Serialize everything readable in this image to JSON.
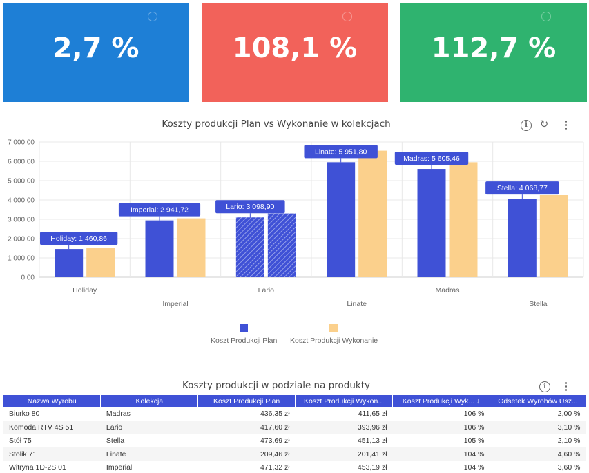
{
  "kpis": [
    {
      "value": "2,7 %",
      "color": "#1e7fd6"
    },
    {
      "value": "108,1 %",
      "color": "#f2625a"
    },
    {
      "value": "112,7 %",
      "color": "#2fb36f"
    }
  ],
  "chart_card": {
    "title": "Koszty produkcji Plan vs Wykonanie w kolekcjach"
  },
  "chart_data": {
    "type": "bar",
    "categories": [
      "Holiday",
      "Imperial",
      "Lario",
      "Linate",
      "Madras",
      "Stella"
    ],
    "series": [
      {
        "name": "Koszt Produkcji Plan",
        "values": [
          1460.86,
          2941.72,
          3098.9,
          5951.8,
          5605.46,
          4068.77
        ],
        "color": "#3f51d6"
      },
      {
        "name": "Koszt Produkcji Wykonanie",
        "values": [
          1500,
          3050,
          3300,
          6550,
          5950,
          4250
        ],
        "color": "#fbd08c"
      }
    ],
    "annotations": [
      "Holiday: 1 460,86",
      "Imperial: 2 941,72",
      "Lario: 3 098,90",
      "Linate: 5 951,80",
      "Madras: 5 605,46",
      "Stella: 4 068,77"
    ],
    "y_tick_labels": [
      "0,00",
      "1 000,00",
      "2 000,00",
      "3 000,00",
      "4 000,00",
      "5 000,00",
      "6 000,00",
      "7 000,00"
    ],
    "ylim": [
      0,
      7000
    ],
    "grid": true,
    "legend_position": "bottom"
  },
  "table_card": {
    "title": "Koszty produkcji w podziale na produkty",
    "headers": [
      "Nazwa Wyrobu",
      "Kolekcja",
      "Koszt Produkcji Plan",
      "Koszt Produkcji Wykon...",
      "Koszt Produkcji Wyk... ↓",
      "Odsetek Wyrobów Usz..."
    ],
    "rows": [
      [
        "Biurko 80",
        "Madras",
        "436,35 zł",
        "411,65 zł",
        "106 %",
        "2,00 %"
      ],
      [
        "Komoda RTV 4S 51",
        "Lario",
        "417,60 zł",
        "393,96 zł",
        "106 %",
        "3,10 %"
      ],
      [
        "Stół 75",
        "Stella",
        "473,69 zł",
        "451,13 zł",
        "105 %",
        "2,10 %"
      ],
      [
        "Stolik 71",
        "Linate",
        "209,46 zł",
        "201,41 zł",
        "104 %",
        "4,60 %"
      ],
      [
        "Witryna 1D-2S 01",
        "Imperial",
        "471,32 zł",
        "453,19 zł",
        "104 %",
        "3,60 %"
      ]
    ]
  }
}
